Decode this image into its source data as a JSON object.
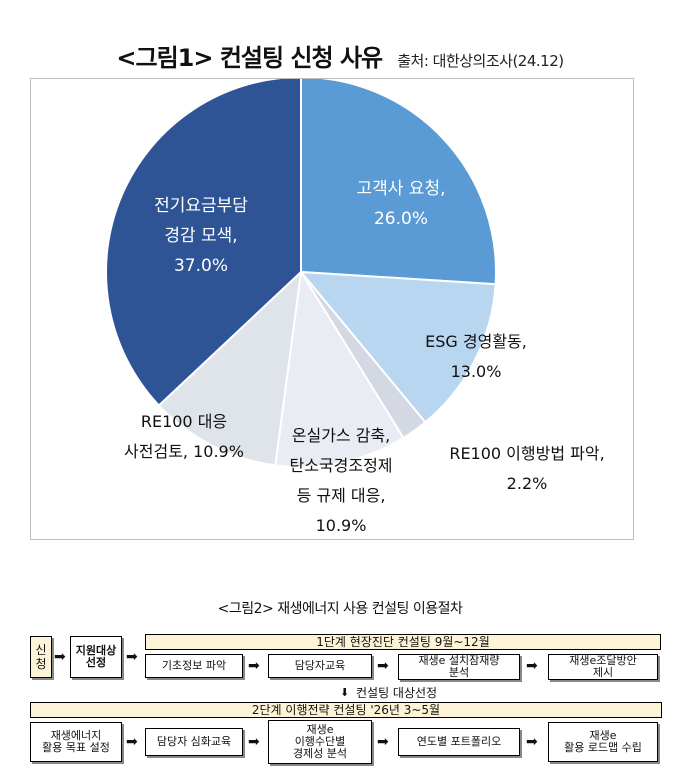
{
  "figure1": {
    "title": "<그림1> 컨설팅 신청 사유",
    "source": "출처: 대한상의조사(24.12)",
    "chart_data": {
      "type": "pie",
      "slices": [
        {
          "label": "고객사 요청,",
          "value": 26.0,
          "value_text": "26.0%",
          "color": "#5b9bd5"
        },
        {
          "label": "ESG 경영활동,",
          "value": 13.0,
          "value_text": "13.0%",
          "color": "#b9d6f1"
        },
        {
          "label": "RE100 이행방법 파악,",
          "value": 2.2,
          "value_text": "2.2%",
          "color": "#d3d8e2"
        },
        {
          "label": "온실가스 감축, 탄소국경조정제 등 규제 대응,",
          "value": 10.9,
          "value_text": "10.9%",
          "color": "#e9edf3"
        },
        {
          "label": "RE100 대응 사전검토,",
          "value": 10.9,
          "value_text": "10.9%",
          "color": "#dfe3ea"
        },
        {
          "label": "전기요금부담 경감 모색,",
          "value": 37.0,
          "value_text": "37.0%",
          "color": "#2f5496"
        }
      ]
    },
    "labels": {
      "customer": {
        "l1": "고객사 요청,",
        "l2": "26.0%"
      },
      "esg": {
        "l1": "ESG 경영활동,",
        "l2": "13.0%"
      },
      "re100method": {
        "l1": "RE100 이행방법 파악,",
        "l2": "2.2%"
      },
      "ghg": {
        "l1": "온실가스 감축,",
        "l2": "탄소국경조정제",
        "l3": "등 규제 대응,",
        "l4": "10.9%"
      },
      "re100review": {
        "l1": "RE100 대응",
        "l2": "사전검토, 10.9%"
      },
      "electric": {
        "l1": "전기요금부담",
        "l2": "경감 모색,",
        "l3": "37.0%"
      }
    }
  },
  "figure2": {
    "title": "<그림2> 재생에너지 사용 컨설팅 이용절차",
    "apply": "신\n청",
    "select": "지원대상\n선정",
    "stage1": "1단계 현장진단 컨설팅 9월~12월",
    "stage1_steps": [
      "기초정보 파악",
      "담당자교육",
      "재생e 설치잠재량\n분석",
      "재생e조달방안\n제시"
    ],
    "mid_note": "컨설팅 대상선정",
    "stage2": "2단계 이행전략 컨설팅 '26년 3~5월",
    "stage2_steps": [
      "재생에너지\n활용 목표 설정",
      "담당자 심화교육",
      "재생e\n이행수단별\n경제성 분석",
      "연도별 포트폴리오",
      "재생e\n활용 로드맵 수립"
    ]
  }
}
